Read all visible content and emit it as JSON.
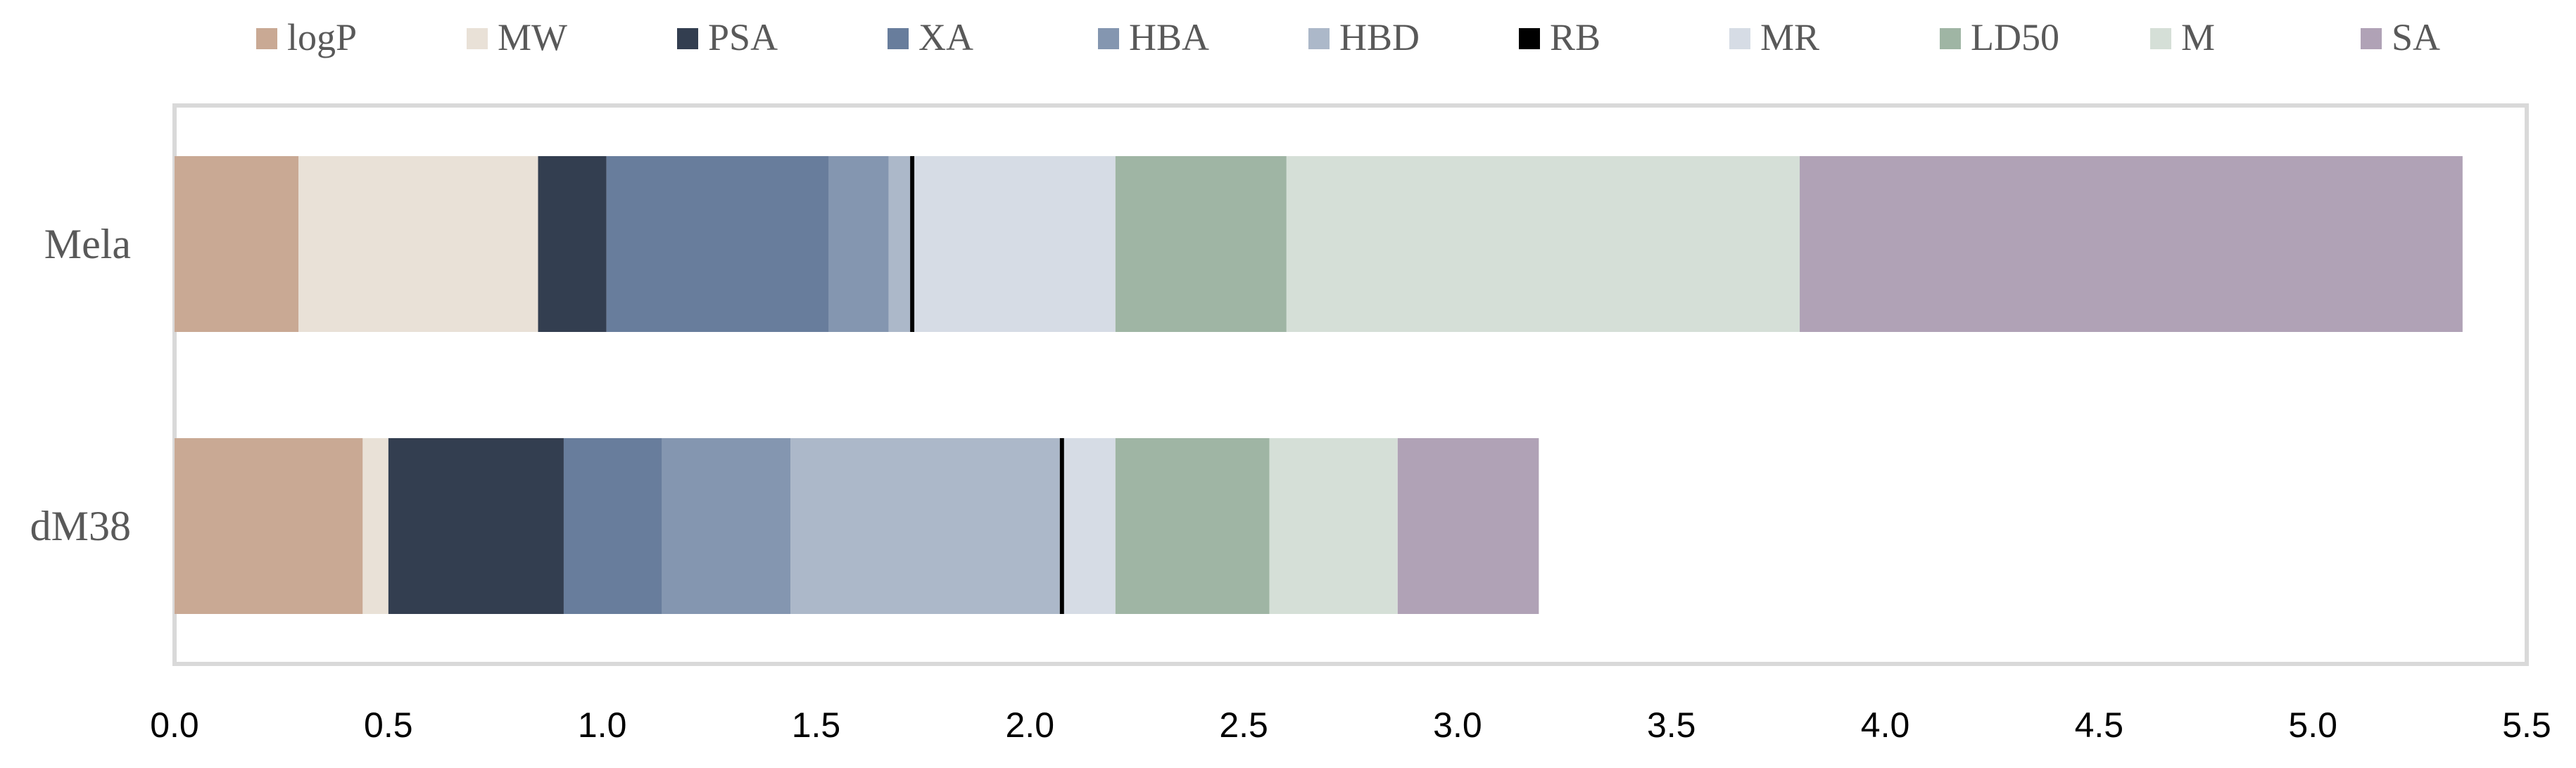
{
  "chart_data": {
    "type": "bar",
    "orientation": "horizontal",
    "stacked": true,
    "categories": [
      "Mela",
      "dM38"
    ],
    "series": [
      {
        "name": "logP",
        "color": "#c9a994",
        "values": [
          0.29,
          0.44
        ]
      },
      {
        "name": "MW",
        "color": "#e9e1d7",
        "values": [
          0.56,
          0.06
        ]
      },
      {
        "name": "PSA",
        "color": "#333e50",
        "values": [
          0.16,
          0.41
        ]
      },
      {
        "name": "XA",
        "color": "#687d9c",
        "values": [
          0.52,
          0.23
        ]
      },
      {
        "name": "HBA",
        "color": "#8496b0",
        "values": [
          0.14,
          0.3
        ]
      },
      {
        "name": "HBD",
        "color": "#acb8c9",
        "values": [
          0.05,
          0.63
        ]
      },
      {
        "name": "RB",
        "color": "#000000",
        "values": [
          0.01,
          0.01
        ]
      },
      {
        "name": "MR",
        "color": "#d6dce5",
        "values": [
          0.47,
          0.12
        ]
      },
      {
        "name": "LD50",
        "color": "#9fb5a4",
        "values": [
          0.4,
          0.36
        ]
      },
      {
        "name": "M",
        "color": "#d5dfd7",
        "values": [
          1.2,
          0.3
        ]
      },
      {
        "name": "SA",
        "color": "#b0a2b6",
        "values": [
          1.55,
          0.33
        ]
      }
    ],
    "xlim": [
      0,
      5.5
    ],
    "xticks": [
      "0.0",
      "0.5",
      "1.0",
      "1.5",
      "2.0",
      "2.5",
      "3.0",
      "3.5",
      "4.0",
      "4.5",
      "5.0",
      "5.5"
    ],
    "legend_position": "top",
    "grid": false,
    "title": "",
    "xlabel": "",
    "ylabel": ""
  }
}
